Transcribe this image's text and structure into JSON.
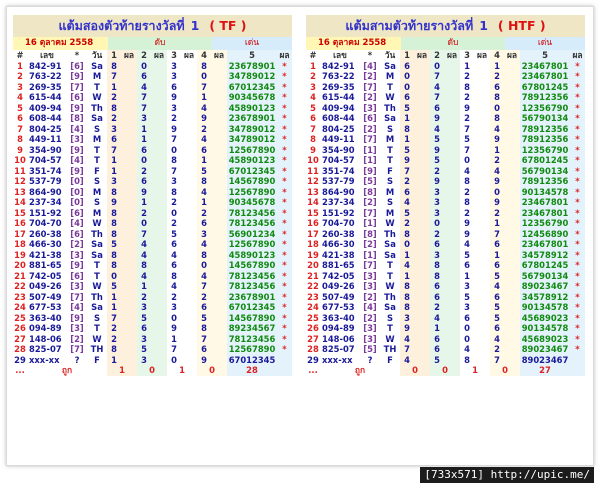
{
  "watermark": "[733x571] http://upic.me/",
  "panels": [
    {
      "title": "แต้มสองตัวท้ายรางวัลที่",
      "number": "1",
      "code": "( TF )",
      "date": "16 ตุลาคม 2558",
      "digits_label": "ดับ",
      "show_label": "เด่น",
      "headers": [
        "#",
        "เลข",
        "*",
        "วัน",
        "1",
        "ผล",
        "2",
        "ผล",
        "3",
        "ผล",
        "4",
        "ผล",
        "5",
        "ผล"
      ],
      "rows": [
        [
          "1",
          "842-91",
          "[6]",
          "Sa",
          "8",
          "0",
          "3",
          "8",
          "23678901",
          "*"
        ],
        [
          "2",
          "763-22",
          "[9]",
          "M",
          "7",
          "6",
          "3",
          "0",
          "34789012",
          "*"
        ],
        [
          "3",
          "269-35",
          "[7]",
          "T",
          "1",
          "4",
          "6",
          "7",
          "67012345",
          "*"
        ],
        [
          "4",
          "615-44",
          "[6]",
          "W",
          "2",
          "7",
          "9",
          "1",
          "90345678",
          "*"
        ],
        [
          "5",
          "409-94",
          "[9]",
          "Th",
          "8",
          "7",
          "3",
          "4",
          "45890123",
          "*"
        ],
        [
          "6",
          "608-44",
          "[8]",
          "Sa",
          "2",
          "3",
          "2",
          "9",
          "23678901",
          "*"
        ],
        [
          "7",
          "804-25",
          "[4]",
          "S",
          "3",
          "1",
          "9",
          "2",
          "34789012",
          "*"
        ],
        [
          "8",
          "449-11",
          "[3]",
          "M",
          "6",
          "1",
          "7",
          "4",
          "34789012",
          "*"
        ],
        [
          "9",
          "354-90",
          "[9]",
          "T",
          "7",
          "6",
          "0",
          "6",
          "12567890",
          "*"
        ],
        [
          "10",
          "704-57",
          "[4]",
          "T",
          "1",
          "0",
          "8",
          "1",
          "45890123",
          "*"
        ],
        [
          "11",
          "351-74",
          "[9]",
          "F",
          "1",
          "2",
          "7",
          "5",
          "67012345",
          "*"
        ],
        [
          "12",
          "537-79",
          "[0]",
          "S",
          "3",
          "6",
          "3",
          "8",
          "14567890",
          "*"
        ],
        [
          "13",
          "864-90",
          "[0]",
          "M",
          "8",
          "9",
          "8",
          "4",
          "12567890",
          "*"
        ],
        [
          "14",
          "237-34",
          "[0]",
          "S",
          "9",
          "1",
          "2",
          "1",
          "90345678",
          "*"
        ],
        [
          "15",
          "151-92",
          "[6]",
          "M",
          "8",
          "2",
          "0",
          "2",
          "78123456",
          "*"
        ],
        [
          "16",
          "704-70",
          "[4]",
          "W",
          "8",
          "0",
          "2",
          "6",
          "78123456",
          "*"
        ],
        [
          "17",
          "260-38",
          "[6]",
          "Th",
          "8",
          "7",
          "5",
          "3",
          "56901234",
          "*"
        ],
        [
          "18",
          "466-30",
          "[2]",
          "Sa",
          "5",
          "4",
          "6",
          "4",
          "12567890",
          "*"
        ],
        [
          "19",
          "421-38",
          "[3]",
          "Sa",
          "8",
          "4",
          "4",
          "8",
          "45890123",
          "*"
        ],
        [
          "20",
          "881-65",
          "[9]",
          "T",
          "8",
          "8",
          "6",
          "0",
          "14567890",
          "*"
        ],
        [
          "21",
          "742-05",
          "[6]",
          "T",
          "0",
          "4",
          "8",
          "4",
          "78123456",
          "*"
        ],
        [
          "22",
          "049-26",
          "[3]",
          "W",
          "5",
          "1",
          "4",
          "7",
          "78123456",
          "*"
        ],
        [
          "23",
          "507-49",
          "[7]",
          "Th",
          "1",
          "2",
          "2",
          "2",
          "23678901",
          "*"
        ],
        [
          "24",
          "677-53",
          "[4]",
          "Sa",
          "1",
          "3",
          "3",
          "6",
          "67012345",
          "*"
        ],
        [
          "25",
          "363-40",
          "[9]",
          "S",
          "7",
          "5",
          "0",
          "5",
          "14567890",
          "*"
        ],
        [
          "26",
          "094-89",
          "[3]",
          "T",
          "2",
          "6",
          "9",
          "8",
          "89234567",
          "*"
        ],
        [
          "27",
          "148-06",
          "[2]",
          "W",
          "2",
          "3",
          "1",
          "7",
          "78123456",
          "*"
        ],
        [
          "28",
          "825-07",
          "[7]",
          "TH",
          "8",
          "5",
          "7",
          "6",
          "12567890",
          "*"
        ]
      ],
      "last_row": [
        "29",
        "xxx-xx",
        "?",
        "F",
        "1",
        "3",
        "0",
        "9",
        "67012345",
        ""
      ],
      "sum_row": [
        "...",
        "ถูก",
        "1",
        "0",
        "1",
        "0",
        "28",
        ""
      ]
    },
    {
      "title": "แต้มสามตัวท้ายรางวัลที่",
      "number": "1",
      "code": "( HTF )",
      "date": "16 ตุลาคม 2558",
      "digits_label": "ดับ",
      "show_label": "เด่น",
      "headers": [
        "#",
        "เลข",
        "*",
        "วัน",
        "1",
        "ผล",
        "2",
        "ผล",
        "3",
        "ผล",
        "4",
        "ผล",
        "5",
        "ผล"
      ],
      "rows": [
        [
          "1",
          "842-91",
          "[4]",
          "Sa",
          "6",
          "0",
          "1",
          "1",
          "23467801",
          "*"
        ],
        [
          "2",
          "763-22",
          "[2]",
          "M",
          "0",
          "7",
          "2",
          "2",
          "23467801",
          "*"
        ],
        [
          "3",
          "269-35",
          "[7]",
          "T",
          "0",
          "4",
          "8",
          "6",
          "67801245",
          "*"
        ],
        [
          "4",
          "615-44",
          "[2]",
          "W",
          "6",
          "7",
          "2",
          "8",
          "78912356",
          "*"
        ],
        [
          "5",
          "409-94",
          "[3]",
          "Th",
          "5",
          "6",
          "9",
          "0",
          "12356790",
          "*"
        ],
        [
          "6",
          "608-44",
          "[6]",
          "Sa",
          "1",
          "9",
          "2",
          "8",
          "56790134",
          "*"
        ],
        [
          "7",
          "804-25",
          "[2]",
          "S",
          "8",
          "4",
          "7",
          "4",
          "78912356",
          "*"
        ],
        [
          "8",
          "449-11",
          "[7]",
          "M",
          "1",
          "5",
          "5",
          "9",
          "78912356",
          "*"
        ],
        [
          "9",
          "354-90",
          "[1]",
          "T",
          "5",
          "9",
          "7",
          "1",
          "12356790",
          "*"
        ],
        [
          "10",
          "704-57",
          "[1]",
          "T",
          "9",
          "5",
          "0",
          "2",
          "67801245",
          "*"
        ],
        [
          "11",
          "351-74",
          "[9]",
          "F",
          "7",
          "2",
          "4",
          "4",
          "56790134",
          "*"
        ],
        [
          "12",
          "537-79",
          "[5]",
          "S",
          "2",
          "9",
          "8",
          "9",
          "78912356",
          "*"
        ],
        [
          "13",
          "864-90",
          "[8]",
          "M",
          "6",
          "3",
          "2",
          "0",
          "90134578",
          "*"
        ],
        [
          "14",
          "237-34",
          "[2]",
          "S",
          "4",
          "3",
          "8",
          "9",
          "23467801",
          "*"
        ],
        [
          "15",
          "151-92",
          "[7]",
          "M",
          "5",
          "3",
          "2",
          "2",
          "23467801",
          "*"
        ],
        [
          "16",
          "704-70",
          "[1]",
          "W",
          "2",
          "0",
          "9",
          "1",
          "12356790",
          "*"
        ],
        [
          "17",
          "260-38",
          "[8]",
          "Th",
          "8",
          "2",
          "9",
          "7",
          "12456890",
          "*"
        ],
        [
          "18",
          "466-30",
          "[2]",
          "Sa",
          "0",
          "6",
          "4",
          "6",
          "23467801",
          "*"
        ],
        [
          "19",
          "421-38",
          "[1]",
          "Sa",
          "1",
          "3",
          "5",
          "1",
          "34578912",
          "*"
        ],
        [
          "20",
          "881-65",
          "[7]",
          "T",
          "4",
          "8",
          "6",
          "6",
          "67801245",
          "*"
        ],
        [
          "21",
          "742-05",
          "[3]",
          "T",
          "1",
          "8",
          "1",
          "5",
          "56790134",
          "*"
        ],
        [
          "22",
          "049-26",
          "[3]",
          "W",
          "8",
          "6",
          "3",
          "4",
          "89023467",
          "*"
        ],
        [
          "23",
          "507-49",
          "[2]",
          "Th",
          "8",
          "6",
          "5",
          "6",
          "34578912",
          "*"
        ],
        [
          "24",
          "677-53",
          "[4]",
          "Sa",
          "8",
          "2",
          "3",
          "5",
          "90134578",
          "*"
        ],
        [
          "25",
          "363-40",
          "[2]",
          "S",
          "3",
          "4",
          "6",
          "5",
          "45689023",
          "*"
        ],
        [
          "26",
          "094-89",
          "[3]",
          "T",
          "9",
          "1",
          "0",
          "6",
          "90134578",
          "*"
        ],
        [
          "27",
          "148-06",
          "[3]",
          "W",
          "4",
          "6",
          "0",
          "4",
          "45689023",
          "*"
        ],
        [
          "28",
          "825-07",
          "[5]",
          "TH",
          "7",
          "6",
          "4",
          "2",
          "89023467",
          "*"
        ]
      ],
      "last_row": [
        "29",
        "xxx-xx",
        "?",
        "F",
        "4",
        "5",
        "8",
        "7",
        "89023467",
        ""
      ],
      "sum_row": [
        "...",
        "ถูก",
        "0",
        "0",
        "1",
        "0",
        "27",
        ""
      ]
    }
  ]
}
